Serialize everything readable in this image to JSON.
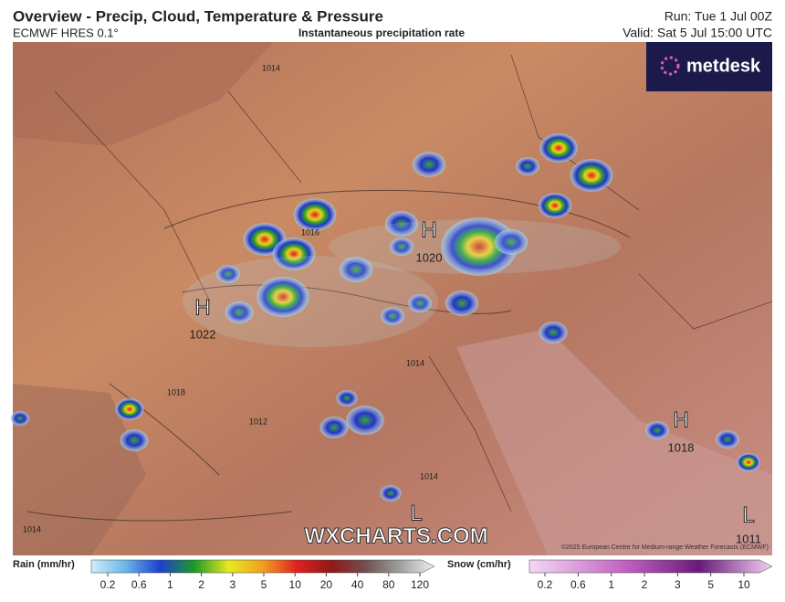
{
  "header": {
    "title": "Overview - Precip, Cloud, Temperature & Pressure",
    "model": "ECMWF HRES 0.1°",
    "subtitle": "Instantaneous precipitation rate",
    "run": "Run: Tue 1 Jul 00Z",
    "valid": "Valid: Sat 5 Jul 15:00 UTC"
  },
  "logo": "metdesk",
  "pressure_centers": [
    {
      "type": "H",
      "value": 1020
    },
    {
      "type": "H",
      "value": 1022
    },
    {
      "type": "H",
      "value": 1018
    },
    {
      "type": "L",
      "value": 1011
    },
    {
      "type": "L"
    }
  ],
  "isobar_labels": [
    1014,
    1016,
    1018,
    1012,
    1014,
    1014,
    1014
  ],
  "watermark": "WXCHARTS.COM",
  "copyright": "©2025 European Centre for Medium-range Weather Forecasts (ECMWF)",
  "legend": {
    "rain": {
      "label": "Rain (mm/hr)",
      "ticks": [
        0.2,
        0.6,
        1,
        2,
        3,
        5,
        10,
        20,
        40,
        80,
        120
      ]
    },
    "snow": {
      "label": "Snow (cm/hr)",
      "ticks": [
        0.2,
        0.6,
        1,
        2,
        3,
        5,
        10
      ]
    }
  }
}
